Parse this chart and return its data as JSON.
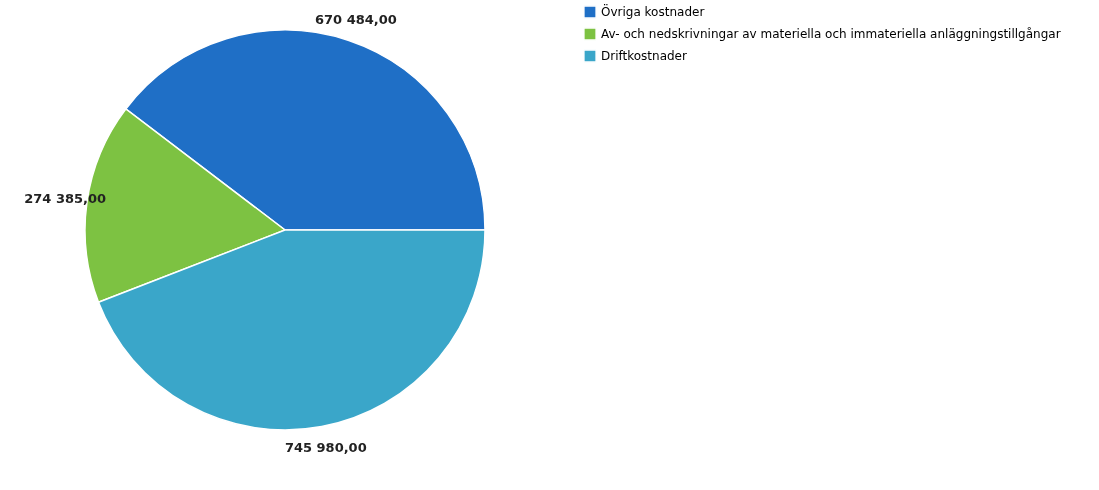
{
  "chart_data": {
    "type": "pie",
    "categories": [
      "Övriga kostnader",
      "Av- och nedskrivningar av materiella och immateriella anläggningstillgångar",
      "Driftkostnader"
    ],
    "values": [
      670484.0,
      274385.0,
      745980.0
    ],
    "colors": [
      "#1f6fc6",
      "#7dc242",
      "#3aa6c9"
    ],
    "value_labels": [
      "670 484,00",
      "274 385,00",
      "745 980,00"
    ],
    "legend": "right"
  }
}
